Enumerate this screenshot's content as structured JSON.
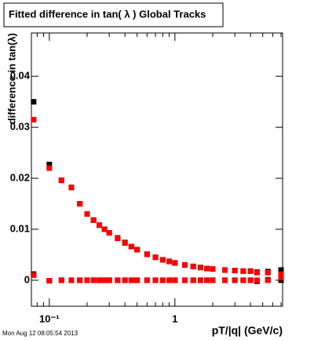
{
  "chart_data": {
    "type": "scatter",
    "title": "Fitted difference in tan( λ )  Global Tracks",
    "y_label": "difference in tan(λ)",
    "x_label": "pT/|q| (GeV/c)",
    "date": "Mon Aug 12 08:05:54 2013",
    "x": [
      0.075,
      0.1,
      0.125,
      0.15,
      0.175,
      0.2,
      0.225,
      0.25,
      0.275,
      0.3,
      0.35,
      0.4,
      0.45,
      0.5,
      0.6,
      0.7,
      0.8,
      0.9,
      1.0,
      1.2,
      1.4,
      1.6,
      1.8,
      2.0,
      2.5,
      3.0,
      3.5,
      4.0,
      4.5,
      5.5,
      7.0
    ],
    "series": [
      {
        "color": "#000000",
        "values": [
          0.035,
          0.0227,
          0.0196,
          0.0182,
          0.015,
          0.013,
          0.0118,
          0.0108,
          0.01,
          0.0093,
          0.0083,
          0.0074,
          0.0066,
          0.006,
          0.0051,
          0.0045,
          0.004,
          0.0037,
          0.0034,
          0.003,
          0.0027,
          0.0025,
          0.0023,
          0.0022,
          0.002,
          0.0019,
          0.0018,
          0.0018,
          0.0016,
          0.0017,
          0.002
        ]
      },
      {
        "color": "#ff0000",
        "values": [
          0.0315,
          0.022,
          0.0196,
          0.0182,
          0.015,
          0.013,
          0.0118,
          0.0108,
          0.01,
          0.0093,
          0.0082,
          0.0073,
          0.0066,
          0.006,
          0.0051,
          0.0045,
          0.004,
          0.0037,
          0.0034,
          0.003,
          0.0027,
          0.0025,
          0.0023,
          0.0022,
          0.002,
          0.0019,
          0.0018,
          0.0018,
          0.0015,
          0.0015,
          0.0012
        ]
      },
      {
        "color": "#000000",
        "values": [
          0.0012,
          -0.0001,
          0.0,
          0.0,
          0.0,
          0.0,
          0.0,
          0.0,
          0.0,
          0.0,
          0.0,
          0.0,
          0.0,
          0.0,
          0.0,
          0.0,
          0.0,
          0.0,
          0.0,
          0.0,
          0.0,
          0.0,
          0.0,
          0.0,
          0.0,
          0.0,
          0.0,
          0.0,
          -0.0002,
          0.0001,
          0.0
        ]
      },
      {
        "color": "#ff0000",
        "values": [
          0.001,
          -0.0001,
          0.0,
          0.0,
          0.0,
          0.0,
          0.0,
          0.0,
          0.0,
          0.0,
          0.0,
          0.0,
          0.0,
          0.0,
          0.0,
          0.0,
          0.0,
          0.0,
          0.0,
          0.0,
          0.0,
          0.0,
          0.0,
          0.0,
          0.0,
          0.0,
          0.0,
          0.0,
          0.0,
          0.0,
          0.0005
        ]
      }
    ],
    "log_x": true,
    "xlim": [
      0.072,
      7.2
    ],
    "xticks": [
      {
        "value": 0.1,
        "label": "10⁻¹"
      },
      1
    ],
    "x_minor_ticks": [
      0.08,
      0.09,
      0.2,
      0.3,
      0.4,
      0.5,
      0.6,
      0.7,
      0.8,
      0.9,
      2,
      3,
      4,
      5,
      6,
      7
    ],
    "ylim": [
      -0.0051,
      0.0485
    ],
    "yticks": [
      0,
      0.01,
      0.02,
      0.03,
      0.04
    ],
    "grid": false
  }
}
